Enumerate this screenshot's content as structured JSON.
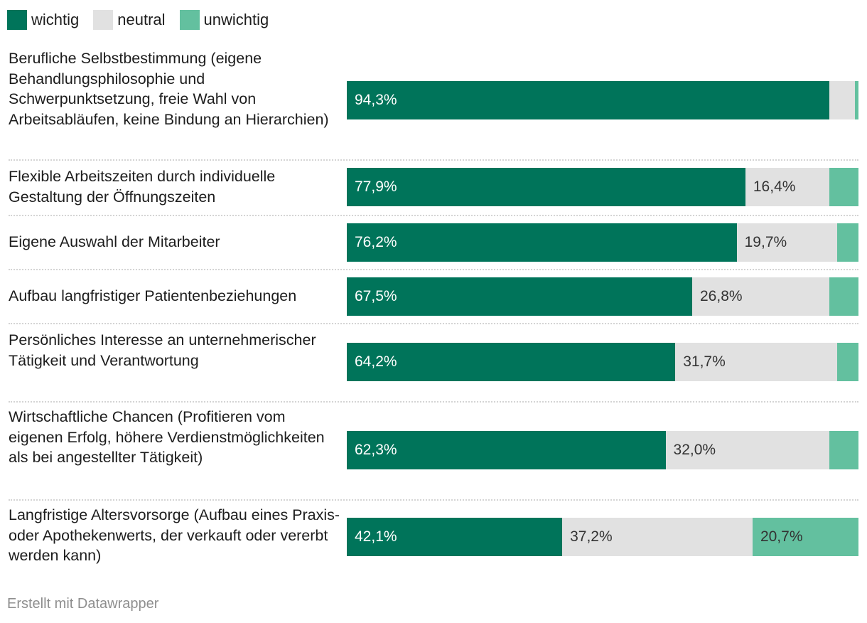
{
  "legend": {
    "wichtig": "wichtig",
    "neutral": "neutral",
    "unwichtig": "unwichtig"
  },
  "colors": {
    "wichtig": "#00745a",
    "neutral": "#e1e1e1",
    "unwichtig": "#63c09f",
    "text_on_dark": "#ffffff",
    "text_on_light": "#333333"
  },
  "chart_data": {
    "type": "bar",
    "stacked": true,
    "orientation": "horizontal",
    "categories": [
      "Berufliche Selbstbestimmung (eigene Behandlungsphilosophie und Schwerpunktsetzung, freie Wahl von Arbeitsabläufen, keine Bindung an Hierarchien)",
      "Flexible Arbeitszeiten durch individuelle Gestaltung der Öffnungszeiten",
      "Eigene Auswahl der Mitarbeiter",
      "Aufbau langfristiger Patientenbeziehungen",
      "Persönliches Interesse an unternehmerischer Tätigkeit und Verantwortung",
      "Wirtschaftliche Chancen (Profitieren vom eigenen Erfolg, höhere Verdienstmöglichkeiten als bei angestellter Tätigkeit)",
      "Langfristige Altersvorsorge (Aufbau eines Praxis- oder Apothekenwerts, der verkauft oder vererbt werden kann)"
    ],
    "series": [
      {
        "name": "wichtig",
        "values": [
          94.3,
          77.9,
          76.2,
          67.5,
          64.2,
          62.3,
          42.1
        ],
        "labels": [
          "94,3%",
          "77,9%",
          "76,2%",
          "67,5%",
          "64,2%",
          "62,3%",
          "42,1%"
        ]
      },
      {
        "name": "neutral",
        "values": [
          5.0,
          16.4,
          19.7,
          26.8,
          31.7,
          32.0,
          37.2
        ],
        "labels": [
          "",
          "16,4%",
          "19,7%",
          "26,8%",
          "31,7%",
          "32,0%",
          "37,2%"
        ]
      },
      {
        "name": "unwichtig",
        "values": [
          0.7,
          5.7,
          4.1,
          5.7,
          4.1,
          5.7,
          20.7
        ],
        "labels": [
          "",
          "",
          "",
          "",
          "",
          "",
          "20,7%"
        ]
      }
    ],
    "xlim": [
      0,
      100
    ],
    "title": "",
    "xlabel": "",
    "ylabel": ""
  },
  "footer": "Erstellt mit Datawrapper"
}
